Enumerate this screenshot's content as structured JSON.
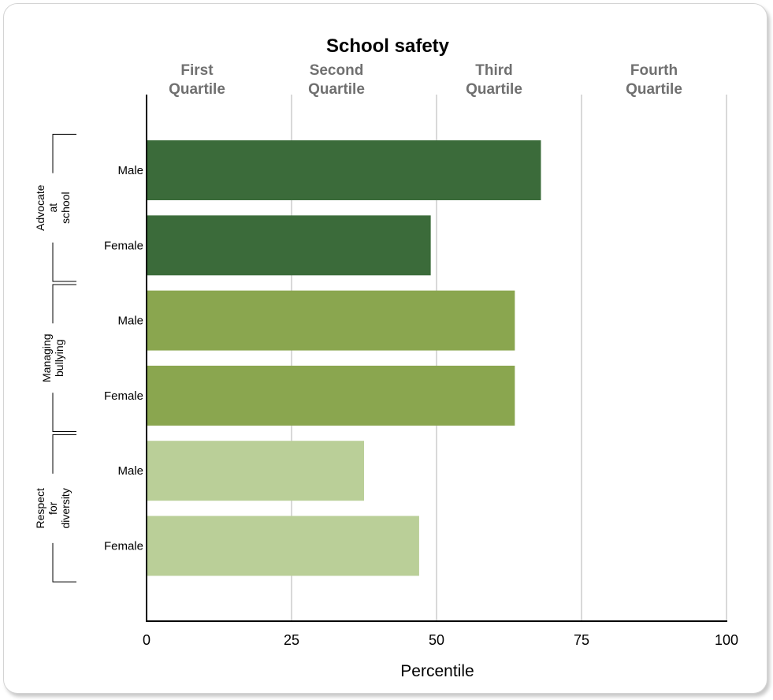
{
  "chart_data": {
    "type": "bar",
    "orientation": "horizontal",
    "title": "School safety",
    "xlabel": "Percentile",
    "xlim": [
      0,
      100
    ],
    "xticks": [
      0,
      25,
      50,
      75,
      100
    ],
    "quartile_labels": [
      {
        "line1": "First",
        "line2": "Quartile"
      },
      {
        "line1": "Second",
        "line2": "Quartile"
      },
      {
        "line1": "Third",
        "line2": "Quartile"
      },
      {
        "line1": "Fourth",
        "line2": "Quartile"
      }
    ],
    "grid": true,
    "groups": [
      {
        "label": [
          "Advocate",
          "at",
          "school"
        ],
        "color": "#3b6b3a",
        "bars": [
          {
            "category": "Male",
            "value": 68
          },
          {
            "category": "Female",
            "value": 49
          }
        ]
      },
      {
        "label": [
          "Managing",
          "bullying"
        ],
        "color": "#8aa64f",
        "bars": [
          {
            "category": "Male",
            "value": 63.5
          },
          {
            "category": "Female",
            "value": 63.5
          }
        ]
      },
      {
        "label": [
          "Respect",
          "for",
          "diversity"
        ],
        "color": "#bacf98",
        "bars": [
          {
            "category": "Male",
            "value": 37.5
          },
          {
            "category": "Female",
            "value": 47
          }
        ]
      }
    ]
  }
}
